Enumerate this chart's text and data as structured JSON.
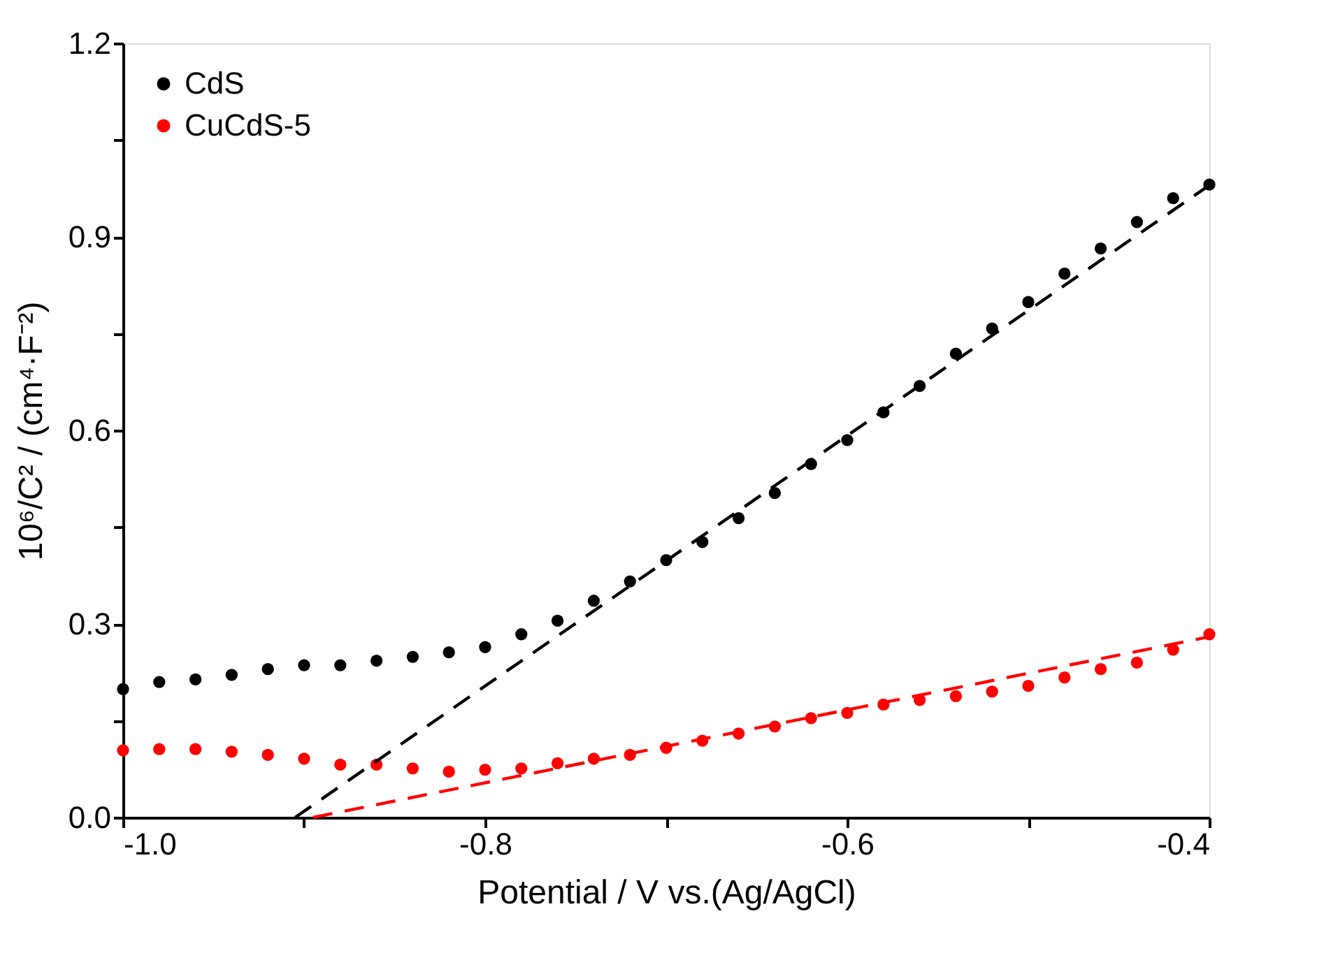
{
  "chart_data": {
    "type": "scatter",
    "xlabel": "Potential / V vs.(Ag/AgCl)",
    "ylabel": "10⁶/C² / (cm⁴·F⁻²)",
    "x": [
      -1.0,
      -0.98,
      -0.96,
      -0.94,
      -0.92,
      -0.9,
      -0.88,
      -0.86,
      -0.84,
      -0.82,
      -0.8,
      -0.78,
      -0.76,
      -0.74,
      -0.72,
      -0.7,
      -0.68,
      -0.66,
      -0.64,
      -0.62,
      -0.6,
      -0.58,
      -0.56,
      -0.54,
      -0.52,
      -0.5,
      -0.48,
      -0.46,
      -0.44,
      -0.42,
      -0.4
    ],
    "series": [
      {
        "name": "CdS",
        "color": "#000000",
        "values": [
          0.199,
          0.21,
          0.214,
          0.221,
          0.23,
          0.236,
          0.236,
          0.243,
          0.249,
          0.256,
          0.264,
          0.284,
          0.305,
          0.336,
          0.366,
          0.399,
          0.427,
          0.464,
          0.503,
          0.548,
          0.585,
          0.628,
          0.669,
          0.719,
          0.758,
          0.799,
          0.843,
          0.882,
          0.923,
          0.96,
          0.981
        ]
      },
      {
        "name": "CuCdS-5",
        "color": "#ff0000",
        "values": [
          0.104,
          0.106,
          0.106,
          0.102,
          0.097,
          0.091,
          0.082,
          0.082,
          0.076,
          0.071,
          0.074,
          0.076,
          0.084,
          0.091,
          0.097,
          0.108,
          0.119,
          0.13,
          0.141,
          0.154,
          0.162,
          0.175,
          0.182,
          0.188,
          0.195,
          0.204,
          0.217,
          0.23,
          0.24,
          0.26,
          0.284
        ]
      },
      {
        "type": "line",
        "marker": "none",
        "line_style": "dashed",
        "color": "#000000",
        "x": [
          -0.905,
          -0.4
        ],
        "values": [
          0.0,
          0.98
        ]
      },
      {
        "type": "line",
        "marker": "none",
        "line_style": "dashed",
        "color": "#ff0000",
        "x": [
          -0.895,
          -0.4
        ],
        "values": [
          0.0,
          0.28
        ]
      }
    ],
    "xlim": [
      -1.0,
      -0.4
    ],
    "ylim": [
      0.0,
      1.2
    ],
    "xticks": [
      {
        "value": -1.0,
        "label": "-1.0"
      },
      {
        "value": -0.9,
        "label": null
      },
      -0.8,
      {
        "value": -0.7,
        "label": null
      },
      -0.6,
      {
        "value": -0.5,
        "label": null
      },
      -0.4
    ],
    "yticks": [
      {
        "value": 0.0,
        "label": "0.0"
      },
      {
        "value": 0.15,
        "label": null
      },
      0.3,
      {
        "value": 0.45,
        "label": null
      },
      0.6,
      {
        "value": 0.75,
        "label": null
      },
      0.9,
      {
        "value": 1.05,
        "label": null
      },
      1.2
    ],
    "marker": "circle",
    "legend": "top left",
    "grid": false
  }
}
